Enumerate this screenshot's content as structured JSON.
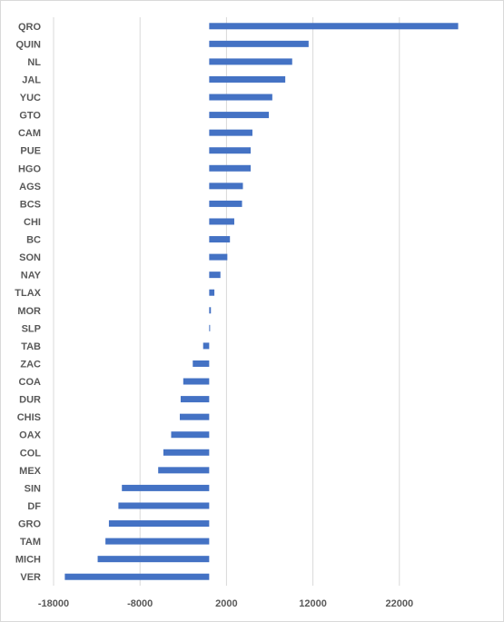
{
  "chart_data": {
    "type": "bar",
    "orientation": "horizontal",
    "title": "",
    "xlabel": "",
    "ylabel": "",
    "xlim": [
      -18000,
      32000
    ],
    "xticks": [
      -18000,
      -8000,
      2000,
      12000,
      22000
    ],
    "xtick_labels": [
      "-18000",
      "-8000",
      "2000",
      "12000",
      "22000"
    ],
    "grid": "vertical",
    "legend": "none",
    "bar_color": "#4472C4",
    "categories": [
      "QRO",
      "QUIN",
      "NL",
      "JAL",
      "YUC",
      "GTO",
      "CAM",
      "PUE",
      "HGO",
      "AGS",
      "BCS",
      "CHI",
      "BC",
      "SON",
      "NAY",
      "TLAX",
      "MOR",
      "SLP",
      "TAB",
      "ZAC",
      "COA",
      "DUR",
      "CHIS",
      "OAX",
      "COL",
      "MEX",
      "SIN",
      "DF",
      "GRO",
      "TAM",
      "MICH",
      "VER"
    ],
    "values": [
      28800,
      11500,
      9600,
      8800,
      7300,
      6900,
      5000,
      4800,
      4800,
      3900,
      3800,
      2900,
      2400,
      2100,
      1300,
      600,
      200,
      100,
      -700,
      -1900,
      -3000,
      -3300,
      -3400,
      -4400,
      -5300,
      -5900,
      -10100,
      -10500,
      -11600,
      -12000,
      -12900,
      -16700
    ]
  }
}
